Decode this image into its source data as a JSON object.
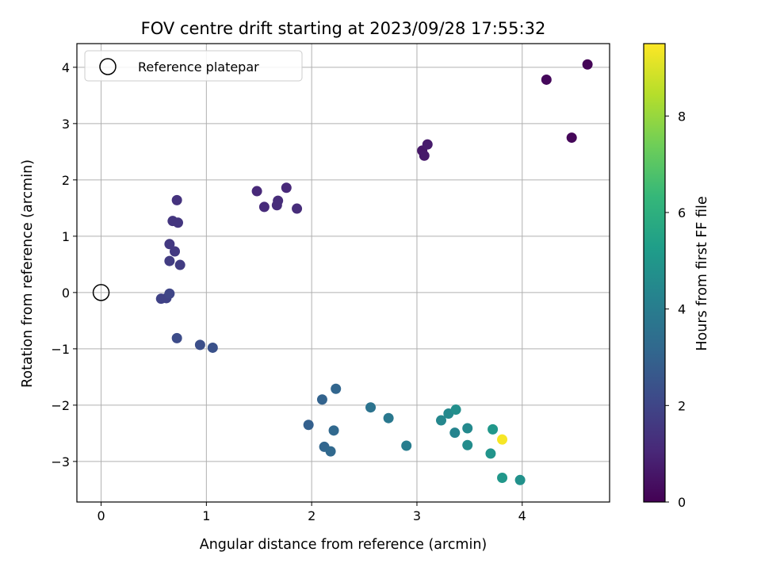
{
  "chart_data": {
    "type": "scatter",
    "title": "FOV centre drift starting at 2023/09/28 17:55:32",
    "xlabel": "Angular distance from reference (arcmin)",
    "ylabel": "Rotation from reference (arcmin)",
    "xlim": [
      -0.23,
      4.83
    ],
    "ylim": [
      -3.72,
      4.42
    ],
    "xticks": [
      0,
      1,
      2,
      3,
      4
    ],
    "yticks": [
      -3,
      -2,
      -1,
      0,
      1,
      2,
      3,
      4
    ],
    "grid": true,
    "legend": {
      "position": "top-left",
      "entries": [
        "Reference platepar"
      ]
    },
    "reference": {
      "name": "Reference platepar",
      "x": 0,
      "y": 0
    },
    "colorbar": {
      "label": "Hours from first FF file",
      "colormap": "viridis",
      "min": 0,
      "max": 9.5,
      "ticks": [
        0,
        2,
        4,
        6,
        8
      ]
    },
    "points": [
      {
        "x": 4.62,
        "y": 4.05,
        "hours": 0.1
      },
      {
        "x": 4.23,
        "y": 3.78,
        "hours": 0.2
      },
      {
        "x": 4.47,
        "y": 2.75,
        "hours": 0.15
      },
      {
        "x": 3.05,
        "y": 2.52,
        "hours": 0.6
      },
      {
        "x": 3.07,
        "y": 2.43,
        "hours": 0.65
      },
      {
        "x": 3.1,
        "y": 2.63,
        "hours": 0.7
      },
      {
        "x": 1.48,
        "y": 1.8,
        "hours": 1.1
      },
      {
        "x": 1.55,
        "y": 1.52,
        "hours": 1.15
      },
      {
        "x": 1.67,
        "y": 1.55,
        "hours": 1.2
      },
      {
        "x": 1.68,
        "y": 1.63,
        "hours": 1.2
      },
      {
        "x": 1.76,
        "y": 1.86,
        "hours": 1.1
      },
      {
        "x": 1.86,
        "y": 1.49,
        "hours": 1.2
      },
      {
        "x": 0.72,
        "y": 1.64,
        "hours": 1.4
      },
      {
        "x": 0.68,
        "y": 1.27,
        "hours": 1.5
      },
      {
        "x": 0.73,
        "y": 1.24,
        "hours": 1.5
      },
      {
        "x": 0.65,
        "y": 0.86,
        "hours": 1.6
      },
      {
        "x": 0.7,
        "y": 0.73,
        "hours": 1.6
      },
      {
        "x": 0.65,
        "y": 0.56,
        "hours": 1.7
      },
      {
        "x": 0.75,
        "y": 0.49,
        "hours": 1.7
      },
      {
        "x": 0.57,
        "y": -0.11,
        "hours": 1.9
      },
      {
        "x": 0.62,
        "y": -0.1,
        "hours": 1.9
      },
      {
        "x": 0.65,
        "y": -0.02,
        "hours": 2.0
      },
      {
        "x": 0.72,
        "y": -0.81,
        "hours": 2.2
      },
      {
        "x": 0.94,
        "y": -0.93,
        "hours": 2.3
      },
      {
        "x": 1.06,
        "y": -0.98,
        "hours": 2.4
      },
      {
        "x": 1.97,
        "y": -2.35,
        "hours": 2.9
      },
      {
        "x": 2.1,
        "y": -1.9,
        "hours": 3.0
      },
      {
        "x": 2.23,
        "y": -1.71,
        "hours": 3.1
      },
      {
        "x": 2.12,
        "y": -2.74,
        "hours": 3.1
      },
      {
        "x": 2.18,
        "y": -2.82,
        "hours": 3.2
      },
      {
        "x": 2.21,
        "y": -2.45,
        "hours": 3.2
      },
      {
        "x": 2.56,
        "y": -2.04,
        "hours": 3.6
      },
      {
        "x": 2.73,
        "y": -2.23,
        "hours": 3.8
      },
      {
        "x": 2.9,
        "y": -2.72,
        "hours": 4.0
      },
      {
        "x": 3.23,
        "y": -2.27,
        "hours": 4.4
      },
      {
        "x": 3.3,
        "y": -2.15,
        "hours": 4.5
      },
      {
        "x": 3.37,
        "y": -2.08,
        "hours": 4.7
      },
      {
        "x": 3.36,
        "y": -2.49,
        "hours": 4.3
      },
      {
        "x": 3.48,
        "y": -2.41,
        "hours": 4.5
      },
      {
        "x": 3.48,
        "y": -2.71,
        "hours": 4.6
      },
      {
        "x": 3.72,
        "y": -2.43,
        "hours": 5.0
      },
      {
        "x": 3.7,
        "y": -2.86,
        "hours": 4.9
      },
      {
        "x": 3.81,
        "y": -3.29,
        "hours": 5.0
      },
      {
        "x": 3.98,
        "y": -3.33,
        "hours": 4.8
      },
      {
        "x": 3.81,
        "y": -2.61,
        "hours": 9.4
      }
    ]
  }
}
